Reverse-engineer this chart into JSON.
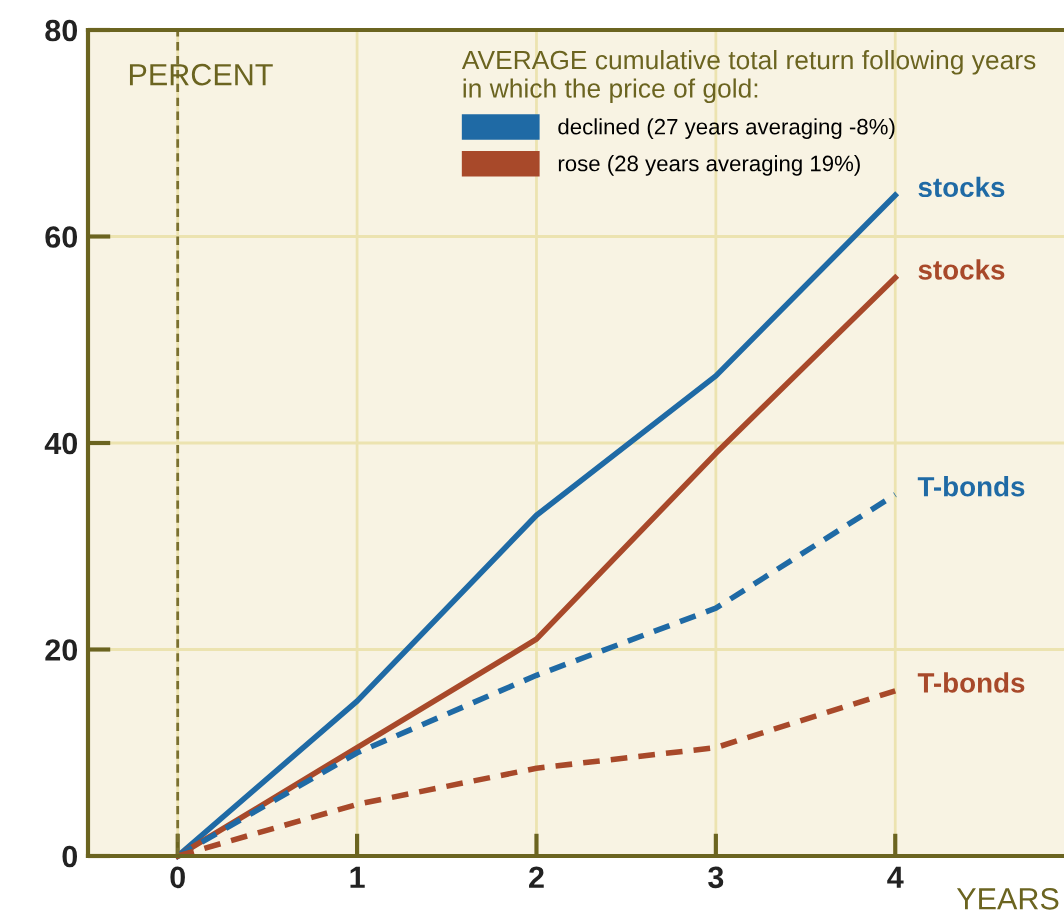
{
  "chart_data": {
    "type": "line",
    "ylabel": "PERCENT",
    "xlabel": "YEARS",
    "legend_title": "AVERAGE cumulative total return following years\nin which the price of gold:",
    "x": [
      0,
      1,
      2,
      3,
      4
    ],
    "series": [
      {
        "name": "declined (27 years averaging -8%)",
        "color": "#1f6aa5",
        "values": [
          0,
          15,
          33,
          46.5,
          64
        ],
        "line_style": "solid"
      },
      {
        "name": "rose (28 years averaging 19%)",
        "color": "#a8492a",
        "values": [
          0,
          10.5,
          21,
          39,
          56
        ],
        "line_style": "solid"
      },
      {
        "color": "#1f6aa5",
        "values": [
          0,
          10,
          17.5,
          24,
          35
        ],
        "line_style": "dashed"
      },
      {
        "color": "#a8492a",
        "values": [
          0,
          5,
          8.5,
          10.5,
          16
        ],
        "line_style": "dashed"
      }
    ],
    "annotations": [
      "stocks",
      "stocks",
      "T-bonds",
      "T-bonds"
    ],
    "ref_lines": [
      {
        "axis": "x",
        "value": 0,
        "color": "#7a7030",
        "line_style": "dashed"
      }
    ],
    "xlim": [
      -0.5,
      5
    ],
    "ylim": [
      0,
      80
    ],
    "xticks": [
      0,
      1,
      2,
      3,
      4
    ],
    "yticks": [
      0,
      20,
      40,
      60,
      80
    ],
    "grid": true,
    "legend": "top"
  }
}
